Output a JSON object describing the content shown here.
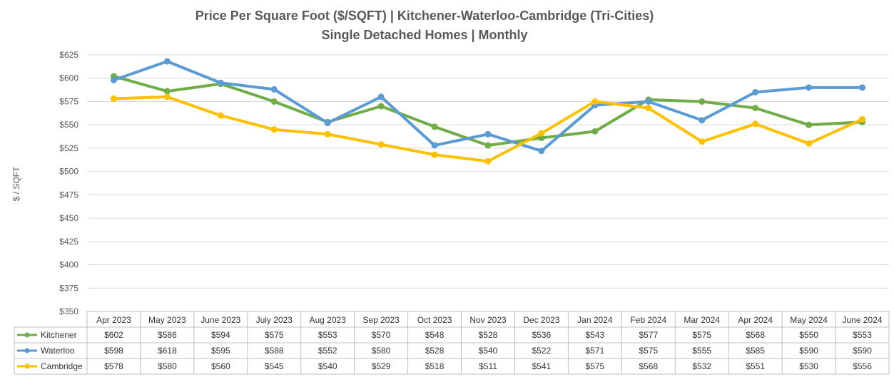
{
  "chart_data": {
    "type": "line",
    "title": "Price Per Square Foot ($/SQFT) | Kitchener-Waterloo-Cambridge (Tri-Cities)",
    "subtitle": "Single Detached Homes | Monthly",
    "xlabel": "",
    "ylabel": "$ / SQFT",
    "ylim": [
      350,
      625
    ],
    "ytick_step": 25,
    "ytick_labels": [
      "$350",
      "$375",
      "$400",
      "$425",
      "$450",
      "$475",
      "$500",
      "$525",
      "$550",
      "$575",
      "$600",
      "$625"
    ],
    "grid": true,
    "legend": "data-table",
    "categories": [
      "Apr 2023",
      "May 2023",
      "June 2023",
      "July 2023",
      "Aug 2023",
      "Sep 2023",
      "Oct 2023",
      "Nov 2023",
      "Dec 2023",
      "Jan 2024",
      "Feb 2024",
      "Mar 2024",
      "Apr 2024",
      "May 2024",
      "June 2024"
    ],
    "series": [
      {
        "name": "Kitchener",
        "color": "#70ad47",
        "values": [
          602,
          586,
          594,
          575,
          553,
          570,
          548,
          528,
          536,
          543,
          577,
          575,
          568,
          550,
          553
        ],
        "labels": [
          "$602",
          "$586",
          "$594",
          "$575",
          "$553",
          "$570",
          "$548",
          "$528",
          "$536",
          "$543",
          "$577",
          "$575",
          "$568",
          "$550",
          "$553"
        ]
      },
      {
        "name": "Waterloo",
        "color": "#5b9bd5",
        "values": [
          598,
          618,
          595,
          588,
          552,
          580,
          528,
          540,
          522,
          571,
          575,
          555,
          585,
          590,
          590
        ],
        "labels": [
          "$598",
          "$618",
          "$595",
          "$588",
          "$552",
          "$580",
          "$528",
          "$540",
          "$522",
          "$571",
          "$575",
          "$555",
          "$585",
          "$590",
          "$590"
        ]
      },
      {
        "name": "Cambridge",
        "color": "#ffc000",
        "values": [
          578,
          580,
          560,
          545,
          540,
          529,
          518,
          511,
          541,
          575,
          568,
          532,
          551,
          530,
          556
        ],
        "labels": [
          "$578",
          "$580",
          "$560",
          "$545",
          "$540",
          "$529",
          "$518",
          "$511",
          "$541",
          "$575",
          "$568",
          "$532",
          "$551",
          "$530",
          "$556"
        ]
      }
    ]
  }
}
